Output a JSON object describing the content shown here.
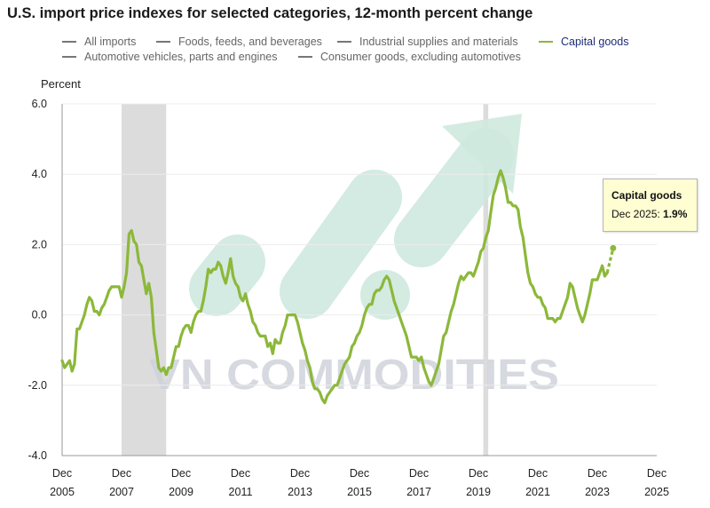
{
  "title": "U.S. import price indexes for selected categories, 12-month percent change",
  "legend": [
    {
      "label": "All imports",
      "active": false
    },
    {
      "label": "Foods, feeds, and beverages",
      "active": false
    },
    {
      "label": "Industrial supplies and materials",
      "active": false
    },
    {
      "label": "Capital goods",
      "active": true
    },
    {
      "label": "Automotive vehicles, parts and engines",
      "active": false
    },
    {
      "label": "Consumer goods, excluding automotives",
      "active": false
    }
  ],
  "watermark": "VN COMMODITIES",
  "tooltip": {
    "title": "Capital goods",
    "label": "Dec 2025:",
    "value": "1.9%"
  },
  "colors": {
    "series": "#8cb83a",
    "recession": "#dcdcdc",
    "watermark": "#cfe9df"
  },
  "chart_data": {
    "type": "line",
    "ylabel": "Percent",
    "ylim": [
      -4,
      6
    ],
    "yticks": [
      "6.0",
      "4.0",
      "2.0",
      "0.0",
      "-2.0",
      "-4.0"
    ],
    "xticks": [
      {
        "month": "Dec",
        "year": "2005"
      },
      {
        "month": "Dec",
        "year": "2007"
      },
      {
        "month": "Dec",
        "year": "2009"
      },
      {
        "month": "Dec",
        "year": "2011"
      },
      {
        "month": "Dec",
        "year": "2013"
      },
      {
        "month": "Dec",
        "year": "2015"
      },
      {
        "month": "Dec",
        "year": "2017"
      },
      {
        "month": "Dec",
        "year": "2019"
      },
      {
        "month": "Dec",
        "year": "2021"
      },
      {
        "month": "Dec",
        "year": "2023"
      },
      {
        "month": "Dec",
        "year": "2025"
      }
    ],
    "xrange": [
      2005.917,
      2025.917
    ],
    "recessions": [
      [
        2007.917,
        2009.417
      ],
      [
        2020.083,
        2020.25
      ]
    ],
    "series": [
      {
        "name": "Capital goods",
        "points": [
          [
            2005.917,
            -1.3
          ],
          [
            2006.0,
            -1.5
          ],
          [
            2006.167,
            -1.3
          ],
          [
            2006.25,
            -1.6
          ],
          [
            2006.333,
            -1.4
          ],
          [
            2006.417,
            -0.4
          ],
          [
            2006.5,
            -0.4
          ],
          [
            2006.583,
            -0.2
          ],
          [
            2006.667,
            0.0
          ],
          [
            2006.75,
            0.3
          ],
          [
            2006.833,
            0.5
          ],
          [
            2006.917,
            0.4
          ],
          [
            2007.0,
            0.1
          ],
          [
            2007.083,
            0.1
          ],
          [
            2007.167,
            0.0
          ],
          [
            2007.25,
            0.2
          ],
          [
            2007.333,
            0.3
          ],
          [
            2007.417,
            0.5
          ],
          [
            2007.5,
            0.7
          ],
          [
            2007.583,
            0.8
          ],
          [
            2007.667,
            0.8
          ],
          [
            2007.833,
            0.8
          ],
          [
            2007.917,
            0.5
          ],
          [
            2008.0,
            0.8
          ],
          [
            2008.083,
            1.2
          ],
          [
            2008.167,
            2.3
          ],
          [
            2008.25,
            2.4
          ],
          [
            2008.333,
            2.1
          ],
          [
            2008.417,
            2.0
          ],
          [
            2008.5,
            1.5
          ],
          [
            2008.583,
            1.4
          ],
          [
            2008.667,
            1.0
          ],
          [
            2008.75,
            0.6
          ],
          [
            2008.833,
            0.9
          ],
          [
            2008.917,
            0.5
          ],
          [
            2009.0,
            -0.5
          ],
          [
            2009.083,
            -1.0
          ],
          [
            2009.167,
            -1.5
          ],
          [
            2009.25,
            -1.6
          ],
          [
            2009.333,
            -1.5
          ],
          [
            2009.417,
            -1.7
          ],
          [
            2009.5,
            -1.5
          ],
          [
            2009.583,
            -1.5
          ],
          [
            2009.667,
            -1.2
          ],
          [
            2009.75,
            -0.9
          ],
          [
            2009.833,
            -0.9
          ],
          [
            2009.917,
            -0.6
          ],
          [
            2010.0,
            -0.4
          ],
          [
            2010.083,
            -0.3
          ],
          [
            2010.167,
            -0.3
          ],
          [
            2010.25,
            -0.5
          ],
          [
            2010.333,
            -0.2
          ],
          [
            2010.417,
            0.0
          ],
          [
            2010.5,
            0.1
          ],
          [
            2010.583,
            0.1
          ],
          [
            2010.667,
            0.4
          ],
          [
            2010.75,
            0.8
          ],
          [
            2010.833,
            1.3
          ],
          [
            2010.917,
            1.2
          ],
          [
            2011.0,
            1.3
          ],
          [
            2011.083,
            1.3
          ],
          [
            2011.167,
            1.5
          ],
          [
            2011.25,
            1.4
          ],
          [
            2011.333,
            1.1
          ],
          [
            2011.417,
            0.9
          ],
          [
            2011.5,
            1.2
          ],
          [
            2011.583,
            1.6
          ],
          [
            2011.667,
            1.1
          ],
          [
            2011.75,
            0.9
          ],
          [
            2011.833,
            0.8
          ],
          [
            2011.917,
            0.5
          ],
          [
            2012.0,
            0.4
          ],
          [
            2012.083,
            0.6
          ],
          [
            2012.167,
            0.3
          ],
          [
            2012.25,
            0.1
          ],
          [
            2012.333,
            -0.2
          ],
          [
            2012.417,
            -0.3
          ],
          [
            2012.5,
            -0.5
          ],
          [
            2012.583,
            -0.6
          ],
          [
            2012.667,
            -0.6
          ],
          [
            2012.75,
            -0.6
          ],
          [
            2012.833,
            -0.9
          ],
          [
            2012.917,
            -0.8
          ],
          [
            2013.0,
            -1.1
          ],
          [
            2013.083,
            -0.7
          ],
          [
            2013.167,
            -0.8
          ],
          [
            2013.25,
            -0.8
          ],
          [
            2013.333,
            -0.5
          ],
          [
            2013.417,
            -0.3
          ],
          [
            2013.5,
            0.0
          ],
          [
            2013.583,
            0.0
          ],
          [
            2013.667,
            0.0
          ],
          [
            2013.75,
            0.0
          ],
          [
            2013.833,
            -0.2
          ],
          [
            2013.917,
            -0.5
          ],
          [
            2014.0,
            -0.8
          ],
          [
            2014.083,
            -1.0
          ],
          [
            2014.167,
            -1.3
          ],
          [
            2014.25,
            -1.5
          ],
          [
            2014.333,
            -1.9
          ],
          [
            2014.417,
            -2.1
          ],
          [
            2014.5,
            -2.1
          ],
          [
            2014.583,
            -2.2
          ],
          [
            2014.667,
            -2.4
          ],
          [
            2014.75,
            -2.5
          ],
          [
            2014.833,
            -2.3
          ],
          [
            2014.917,
            -2.2
          ],
          [
            2015.0,
            -2.1
          ],
          [
            2015.083,
            -2.0
          ],
          [
            2015.167,
            -2.0
          ],
          [
            2015.25,
            -1.8
          ],
          [
            2015.333,
            -1.6
          ],
          [
            2015.417,
            -1.4
          ],
          [
            2015.5,
            -1.3
          ],
          [
            2015.583,
            -1.2
          ],
          [
            2015.667,
            -0.9
          ],
          [
            2015.75,
            -0.8
          ],
          [
            2015.833,
            -0.6
          ],
          [
            2015.917,
            -0.5
          ],
          [
            2016.0,
            -0.3
          ],
          [
            2016.083,
            0.0
          ],
          [
            2016.167,
            0.2
          ],
          [
            2016.25,
            0.3
          ],
          [
            2016.333,
            0.3
          ],
          [
            2016.417,
            0.6
          ],
          [
            2016.5,
            0.7
          ],
          [
            2016.583,
            0.7
          ],
          [
            2016.667,
            0.8
          ],
          [
            2016.75,
            1.0
          ],
          [
            2016.833,
            1.1
          ],
          [
            2016.917,
            1.0
          ],
          [
            2017.0,
            0.7
          ],
          [
            2017.083,
            0.4
          ],
          [
            2017.167,
            0.2
          ],
          [
            2017.25,
            0.0
          ],
          [
            2017.333,
            -0.2
          ],
          [
            2017.417,
            -0.4
          ],
          [
            2017.5,
            -0.6
          ],
          [
            2017.583,
            -0.9
          ],
          [
            2017.667,
            -1.2
          ],
          [
            2017.75,
            -1.2
          ],
          [
            2017.833,
            -1.2
          ],
          [
            2017.917,
            -1.3
          ],
          [
            2018.0,
            -1.2
          ],
          [
            2018.083,
            -1.5
          ],
          [
            2018.167,
            -1.7
          ],
          [
            2018.25,
            -1.9
          ],
          [
            2018.333,
            -2.0
          ],
          [
            2018.417,
            -1.8
          ],
          [
            2018.5,
            -1.6
          ],
          [
            2018.583,
            -1.4
          ],
          [
            2018.667,
            -1.0
          ],
          [
            2018.75,
            -0.6
          ],
          [
            2018.833,
            -0.5
          ],
          [
            2018.917,
            -0.2
          ],
          [
            2019.0,
            0.1
          ],
          [
            2019.083,
            0.3
          ],
          [
            2019.167,
            0.6
          ],
          [
            2019.25,
            0.9
          ],
          [
            2019.333,
            1.1
          ],
          [
            2019.417,
            1.0
          ],
          [
            2019.5,
            1.1
          ],
          [
            2019.583,
            1.2
          ],
          [
            2019.667,
            1.2
          ],
          [
            2019.75,
            1.1
          ],
          [
            2019.833,
            1.3
          ],
          [
            2019.917,
            1.5
          ],
          [
            2020.0,
            1.8
          ],
          [
            2020.083,
            1.9
          ],
          [
            2020.167,
            2.2
          ],
          [
            2020.25,
            2.4
          ],
          [
            2020.333,
            2.9
          ],
          [
            2020.417,
            3.4
          ],
          [
            2020.5,
            3.6
          ],
          [
            2020.583,
            3.9
          ],
          [
            2020.667,
            4.1
          ],
          [
            2020.75,
            3.9
          ],
          [
            2020.833,
            3.6
          ],
          [
            2020.917,
            3.2
          ],
          [
            2021.0,
            3.2
          ],
          [
            2021.083,
            3.1
          ],
          [
            2021.167,
            3.1
          ],
          [
            2021.25,
            3.0
          ],
          [
            2021.333,
            2.5
          ],
          [
            2021.417,
            2.2
          ],
          [
            2021.5,
            1.7
          ],
          [
            2021.583,
            1.2
          ],
          [
            2021.667,
            0.9
          ],
          [
            2021.75,
            0.8
          ],
          [
            2021.833,
            0.6
          ],
          [
            2021.917,
            0.5
          ],
          [
            2022.0,
            0.5
          ],
          [
            2022.083,
            0.3
          ],
          [
            2022.167,
            0.2
          ],
          [
            2022.25,
            -0.1
          ],
          [
            2022.333,
            -0.1
          ],
          [
            2022.417,
            -0.1
          ],
          [
            2022.5,
            -0.2
          ],
          [
            2022.583,
            -0.1
          ],
          [
            2022.667,
            -0.1
          ],
          [
            2022.75,
            0.1
          ],
          [
            2022.833,
            0.3
          ],
          [
            2022.917,
            0.5
          ],
          [
            2023.0,
            0.9
          ],
          [
            2023.083,
            0.8
          ],
          [
            2023.167,
            0.5
          ],
          [
            2023.25,
            0.2
          ],
          [
            2023.333,
            0.0
          ],
          [
            2023.417,
            -0.2
          ],
          [
            2023.5,
            0.0
          ],
          [
            2023.583,
            0.3
          ],
          [
            2023.667,
            0.6
          ],
          [
            2023.75,
            1.0
          ],
          [
            2023.833,
            1.0
          ],
          [
            2023.917,
            1.0
          ],
          [
            2024.0,
            1.2
          ],
          [
            2024.083,
            1.4
          ],
          [
            2024.167,
            1.1
          ],
          [
            2024.25,
            1.2
          ]
        ],
        "dashed_points": [
          [
            2024.25,
            1.2
          ],
          [
            2024.35,
            1.55
          ],
          [
            2024.45,
            1.9
          ]
        ]
      }
    ]
  }
}
